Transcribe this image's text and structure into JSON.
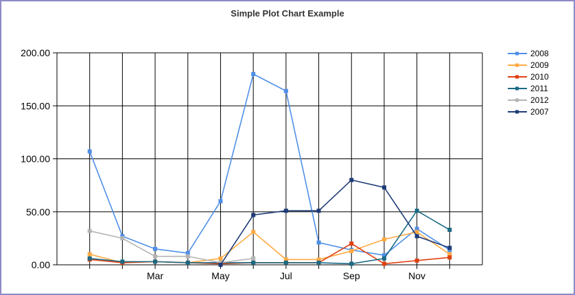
{
  "chart_data": {
    "type": "line",
    "title": "Simple Plot Chart Example",
    "x": [
      1,
      2,
      3,
      4,
      5,
      6,
      7,
      8,
      9,
      10,
      11,
      12
    ],
    "x_tick_labels": [
      {
        "x": 3,
        "label": "Mar"
      },
      {
        "x": 5,
        "label": "May"
      },
      {
        "x": 7,
        "label": "Jul"
      },
      {
        "x": 9,
        "label": "Sep"
      },
      {
        "x": 11,
        "label": "Nov"
      }
    ],
    "xlim": [
      0,
      13
    ],
    "ylim": [
      0,
      200
    ],
    "y_ticks": [
      "0.00",
      "50.00",
      "100.00",
      "150.00",
      "200.00"
    ],
    "grid": true,
    "legend_position": "right",
    "series": [
      {
        "name": "2008",
        "color": "#4f8fe8",
        "values": [
          107,
          27,
          15,
          11,
          60,
          180,
          164,
          21,
          14,
          9,
          34,
          14
        ]
      },
      {
        "name": "2009",
        "color": "#ffaa44",
        "values": [
          10,
          2,
          3,
          2,
          6,
          31,
          5,
          5,
          13,
          24,
          31,
          10
        ]
      },
      {
        "name": "2010",
        "color": "#e04010",
        "values": [
          5,
          2,
          3,
          2,
          1,
          2,
          2,
          2,
          20,
          1,
          4,
          7
        ]
      },
      {
        "name": "2011",
        "color": "#1a6a84",
        "values": [
          6,
          3,
          3,
          2,
          2,
          2,
          2,
          2,
          1,
          6,
          51,
          33
        ]
      },
      {
        "name": "2012",
        "color": "#b4b4b4",
        "values": [
          32,
          25,
          8,
          8,
          2,
          6,
          null,
          null,
          null,
          null,
          null,
          null
        ]
      },
      {
        "name": "2007",
        "color": "#1e3c78",
        "values": [
          null,
          null,
          null,
          null,
          0,
          47,
          51,
          51,
          80,
          73,
          27,
          16
        ]
      }
    ]
  }
}
